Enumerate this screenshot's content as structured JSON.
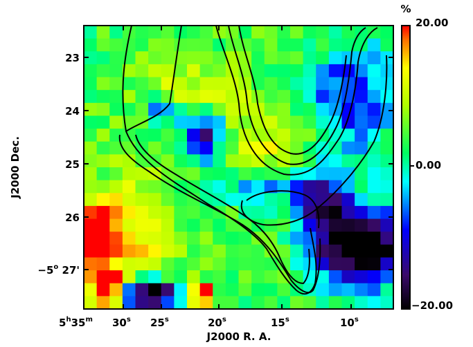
{
  "chart_data": {
    "type": "heatmap",
    "xlabel": "J2000 R. A.",
    "ylabel": "J2000 Dec.",
    "x_ticks": [
      {
        "main": "5",
        "sup1": "h",
        "sec": "35",
        "sup2": "m"
      },
      {
        "main": "30",
        "sup1": "s"
      },
      {
        "main": "25",
        "sup1": "s"
      },
      {
        "main": "20",
        "sup1": "s"
      },
      {
        "main": "15",
        "sup1": "s"
      },
      {
        "main": "10",
        "sup1": "s"
      }
    ],
    "y_ticks": [
      "23",
      "24",
      "25",
      "26",
      "27'"
    ],
    "y_tick_prefix": {
      "main": "−5",
      "sup": "o"
    },
    "colorbar": {
      "unit": "%",
      "max_label": "20.00",
      "mid_label": "0.00",
      "min_label": "−20.00",
      "range": [
        -20,
        20
      ]
    },
    "grid_cols": 24,
    "grid_rows": 22,
    "values": [
      "wwwwwwwwwwvvvvwwwvvwwwwwwwwwwtttmmmmkkmmmtttt",
      "vdhhHHHvvvvvvvwwwwvvvwwwttwwwwvvvvv",
      "x"
    ]
  },
  "colors": {
    "contour": "#000000",
    "frame": "#000000"
  }
}
